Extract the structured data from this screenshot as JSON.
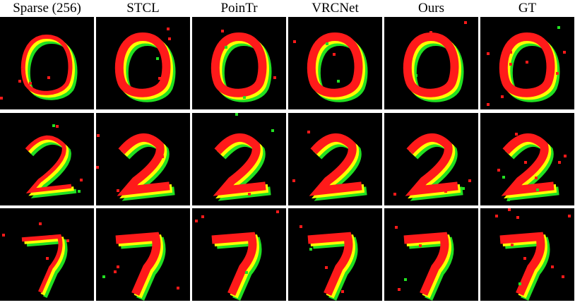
{
  "columns": [
    "Sparse (256)",
    "STCL",
    "PoinTr",
    "VRCNet",
    "Ours",
    "GT"
  ]
}
